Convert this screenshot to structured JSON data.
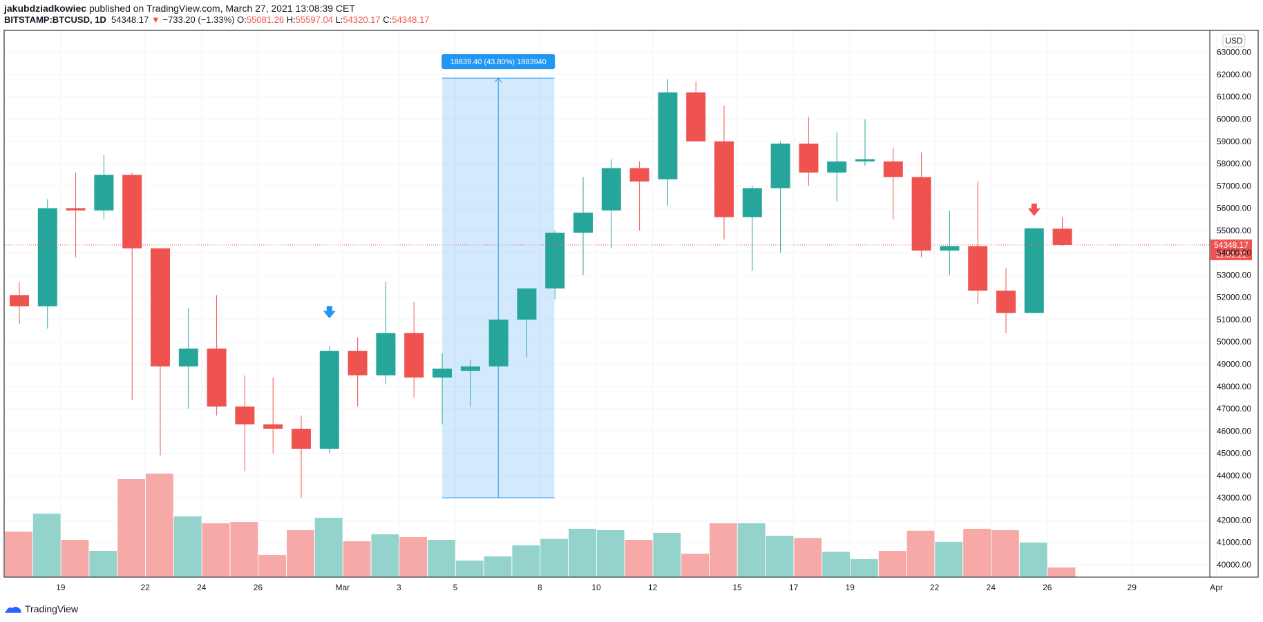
{
  "header": {
    "author": "jakubdziadkowiec",
    "published_text": "published on TradingView.com, March 27, 2021 13:08:39 CET",
    "symbol": "BITSTAMP:BTCUSD, 1D",
    "last": "54348.17",
    "change_arrow": "▼",
    "change": "−733.20 (−1.33%)",
    "o_label": "O:",
    "o_value": "55081.26",
    "h_label": "H:",
    "h_value": "55597.04",
    "l_label": "L:",
    "l_value": "54320.17",
    "c_label": "C:",
    "c_value": "54348.17"
  },
  "footer": {
    "brand": "TradingView"
  },
  "colors": {
    "up": "#26a69a",
    "down": "#ef5350",
    "up_volume": "#93d3cb",
    "down_volume": "#f7a9a8",
    "measure": "#2196f3"
  },
  "chart_data": {
    "type": "candlestick",
    "currency_badge": "USD",
    "ylim": [
      39500,
      63500
    ],
    "y_ticks": [
      "40000.00",
      "41000.00",
      "42000.00",
      "43000.00",
      "44000.00",
      "45000.00",
      "46000.00",
      "47000.00",
      "48000.00",
      "49000.00",
      "50000.00",
      "51000.00",
      "52000.00",
      "53000.00",
      "54000.00",
      "55000.00",
      "56000.00",
      "57000.00",
      "58000.00",
      "59000.00",
      "60000.00",
      "61000.00",
      "62000.00",
      "63000.00"
    ],
    "x_labels": [
      {
        "i": 1,
        "label": "19"
      },
      {
        "i": 4,
        "label": "22"
      },
      {
        "i": 6,
        "label": "24"
      },
      {
        "i": 8,
        "label": "26"
      },
      {
        "i": 11,
        "label": "Mar"
      },
      {
        "i": 13,
        "label": "3"
      },
      {
        "i": 15,
        "label": "5"
      },
      {
        "i": 18,
        "label": "8"
      },
      {
        "i": 20,
        "label": "10"
      },
      {
        "i": 22,
        "label": "12"
      },
      {
        "i": 25,
        "label": "15"
      },
      {
        "i": 27,
        "label": "17"
      },
      {
        "i": 29,
        "label": "19"
      },
      {
        "i": 32,
        "label": "22"
      },
      {
        "i": 34,
        "label": "24"
      },
      {
        "i": 36,
        "label": "26"
      },
      {
        "i": 39,
        "label": "29"
      },
      {
        "i": 42,
        "label": "Apr"
      }
    ],
    "candles": [
      {
        "o": 52100,
        "h": 52700,
        "l": 50800,
        "c": 51600
      },
      {
        "o": 51600,
        "h": 56400,
        "l": 50600,
        "c": 56000
      },
      {
        "o": 56000,
        "h": 57600,
        "l": 53800,
        "c": 55900
      },
      {
        "o": 55900,
        "h": 58400,
        "l": 55500,
        "c": 57500
      },
      {
        "o": 57500,
        "h": 57600,
        "l": 47400,
        "c": 54200
      },
      {
        "o": 54200,
        "h": 54200,
        "l": 44900,
        "c": 48900
      },
      {
        "o": 48900,
        "h": 51500,
        "l": 47000,
        "c": 49700
      },
      {
        "o": 49700,
        "h": 52100,
        "l": 46700,
        "c": 47100
      },
      {
        "o": 47100,
        "h": 48500,
        "l": 44200,
        "c": 46300
      },
      {
        "o": 46300,
        "h": 48400,
        "l": 45000,
        "c": 46100
      },
      {
        "o": 46100,
        "h": 46700,
        "l": 43000,
        "c": 45200
      },
      {
        "o": 45200,
        "h": 49800,
        "l": 45000,
        "c": 49600
      },
      {
        "o": 49600,
        "h": 50200,
        "l": 47100,
        "c": 48500
      },
      {
        "o": 48500,
        "h": 52700,
        "l": 48100,
        "c": 50400
      },
      {
        "o": 50400,
        "h": 51800,
        "l": 47500,
        "c": 48400
      },
      {
        "o": 48400,
        "h": 49500,
        "l": 46300,
        "c": 48800
      },
      {
        "o": 48700,
        "h": 49200,
        "l": 47100,
        "c": 48900
      },
      {
        "o": 48900,
        "h": 51000,
        "l": 48900,
        "c": 51000
      },
      {
        "o": 51000,
        "h": 52400,
        "l": 49300,
        "c": 52400
      },
      {
        "o": 52400,
        "h": 55000,
        "l": 51900,
        "c": 54900
      },
      {
        "o": 54900,
        "h": 57400,
        "l": 53000,
        "c": 55800
      },
      {
        "o": 55900,
        "h": 58200,
        "l": 54200,
        "c": 57800
      },
      {
        "o": 57800,
        "h": 58100,
        "l": 55000,
        "c": 57200
      },
      {
        "o": 57300,
        "h": 61800,
        "l": 56100,
        "c": 61200
      },
      {
        "o": 61200,
        "h": 61700,
        "l": 59000,
        "c": 59000
      },
      {
        "o": 59000,
        "h": 60600,
        "l": 54600,
        "c": 55600
      },
      {
        "o": 55600,
        "h": 57000,
        "l": 53200,
        "c": 56900
      },
      {
        "o": 56900,
        "h": 59000,
        "l": 54000,
        "c": 58900
      },
      {
        "o": 58900,
        "h": 60100,
        "l": 57000,
        "c": 57600
      },
      {
        "o": 57600,
        "h": 59400,
        "l": 56300,
        "c": 58100
      },
      {
        "o": 58100,
        "h": 60000,
        "l": 57900,
        "c": 58200
      },
      {
        "o": 58100,
        "h": 58700,
        "l": 55500,
        "c": 57400
      },
      {
        "o": 57400,
        "h": 58500,
        "l": 53800,
        "c": 54100
      },
      {
        "o": 54100,
        "h": 55900,
        "l": 53000,
        "c": 54300
      },
      {
        "o": 54300,
        "h": 57200,
        "l": 51700,
        "c": 52300
      },
      {
        "o": 52300,
        "h": 53300,
        "l": 50400,
        "c": 51300
      },
      {
        "o": 51300,
        "h": 55100,
        "l": 51300,
        "c": 55100
      },
      {
        "o": 55081.26,
        "h": 55597.04,
        "l": 54320.17,
        "c": 54348.17
      }
    ],
    "volume": [
      1.65,
      2.3,
      1.35,
      0.95,
      3.55,
      3.75,
      2.2,
      1.95,
      2.0,
      0.8,
      1.7,
      2.15,
      1.3,
      1.55,
      1.45,
      1.35,
      0.6,
      0.75,
      1.15,
      1.38,
      1.75,
      1.7,
      1.35,
      1.6,
      0.85,
      1.95,
      1.95,
      1.5,
      1.42,
      0.92,
      0.65,
      0.95,
      1.68,
      1.28,
      1.75,
      1.7,
      1.25,
      0.35
    ],
    "last_price": {
      "value": 54348.17,
      "label": "54348.17",
      "countdown": "11:51:22"
    },
    "measure": {
      "start_i": 15,
      "end_i": 18,
      "from": 43000,
      "to": 61840,
      "label": "18839.40 (43.80%) 1883940"
    },
    "markers": [
      {
        "i": 11,
        "type": "buy-arrow",
        "price": 51300
      },
      {
        "i": 36,
        "type": "sell-arrow",
        "price": 55900
      }
    ]
  }
}
